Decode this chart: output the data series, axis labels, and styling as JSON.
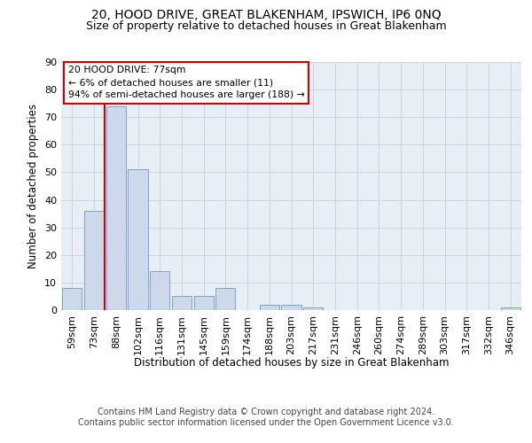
{
  "title": "20, HOOD DRIVE, GREAT BLAKENHAM, IPSWICH, IP6 0NQ",
  "subtitle": "Size of property relative to detached houses in Great Blakenham",
  "xlabel": "Distribution of detached houses by size in Great Blakenham",
  "ylabel": "Number of detached properties",
  "categories": [
    "59sqm",
    "73sqm",
    "88sqm",
    "102sqm",
    "116sqm",
    "131sqm",
    "145sqm",
    "159sqm",
    "174sqm",
    "188sqm",
    "203sqm",
    "217sqm",
    "231sqm",
    "246sqm",
    "260sqm",
    "274sqm",
    "289sqm",
    "303sqm",
    "317sqm",
    "332sqm",
    "346sqm"
  ],
  "values": [
    8,
    36,
    74,
    51,
    14,
    5,
    5,
    8,
    0,
    2,
    2,
    1,
    0,
    0,
    0,
    0,
    0,
    0,
    0,
    0,
    1
  ],
  "bar_color": "#ccd9ea",
  "bar_edge_color": "#7ba3cb",
  "vline_x": 1.5,
  "vline_color": "#cc0000",
  "annotation_text_line1": "20 HOOD DRIVE: 77sqm",
  "annotation_text_line2": "← 6% of detached houses are smaller (11)",
  "annotation_text_line3": "94% of semi-detached houses are larger (188) →",
  "annotation_box_color": "#cc0000",
  "ylim": [
    0,
    90
  ],
  "yticks": [
    0,
    10,
    20,
    30,
    40,
    50,
    60,
    70,
    80,
    90
  ],
  "bg_color": "#e8eef5",
  "grid_color": "#c8d4e0",
  "footer_text": "Contains HM Land Registry data © Crown copyright and database right 2024.\nContains public sector information licensed under the Open Government Licence v3.0.",
  "title_fontsize": 10,
  "subtitle_fontsize": 9,
  "footer_fontsize": 7
}
